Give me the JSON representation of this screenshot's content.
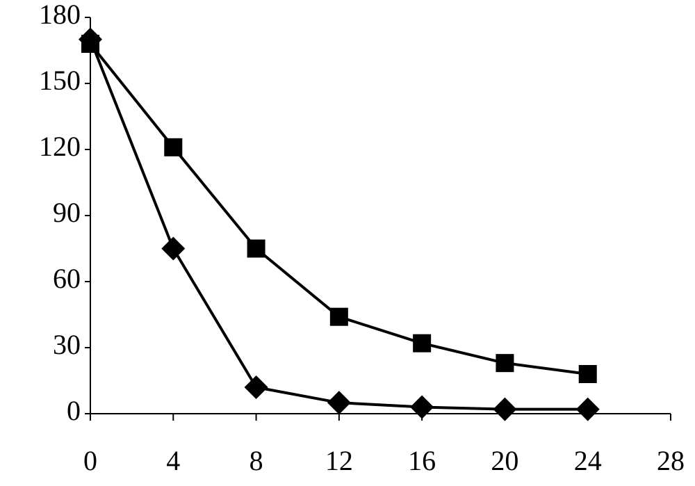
{
  "chart_data": {
    "type": "line",
    "x": [
      0,
      4,
      8,
      12,
      16,
      20,
      24
    ],
    "series": [
      {
        "color": "#000000",
        "marker": "square",
        "values": [
          168,
          121,
          75,
          44,
          32,
          23,
          18
        ]
      },
      {
        "color": "#000000",
        "marker": "diamond",
        "values": [
          170,
          75,
          12,
          5,
          3,
          2,
          2
        ]
      }
    ],
    "xlim": [
      0,
      28
    ],
    "xticks": [
      0,
      4,
      8,
      12,
      16,
      20,
      24,
      28
    ],
    "ylim": [
      0,
      180
    ],
    "yticks": [
      0,
      30,
      60,
      90,
      120,
      150,
      180
    ]
  }
}
